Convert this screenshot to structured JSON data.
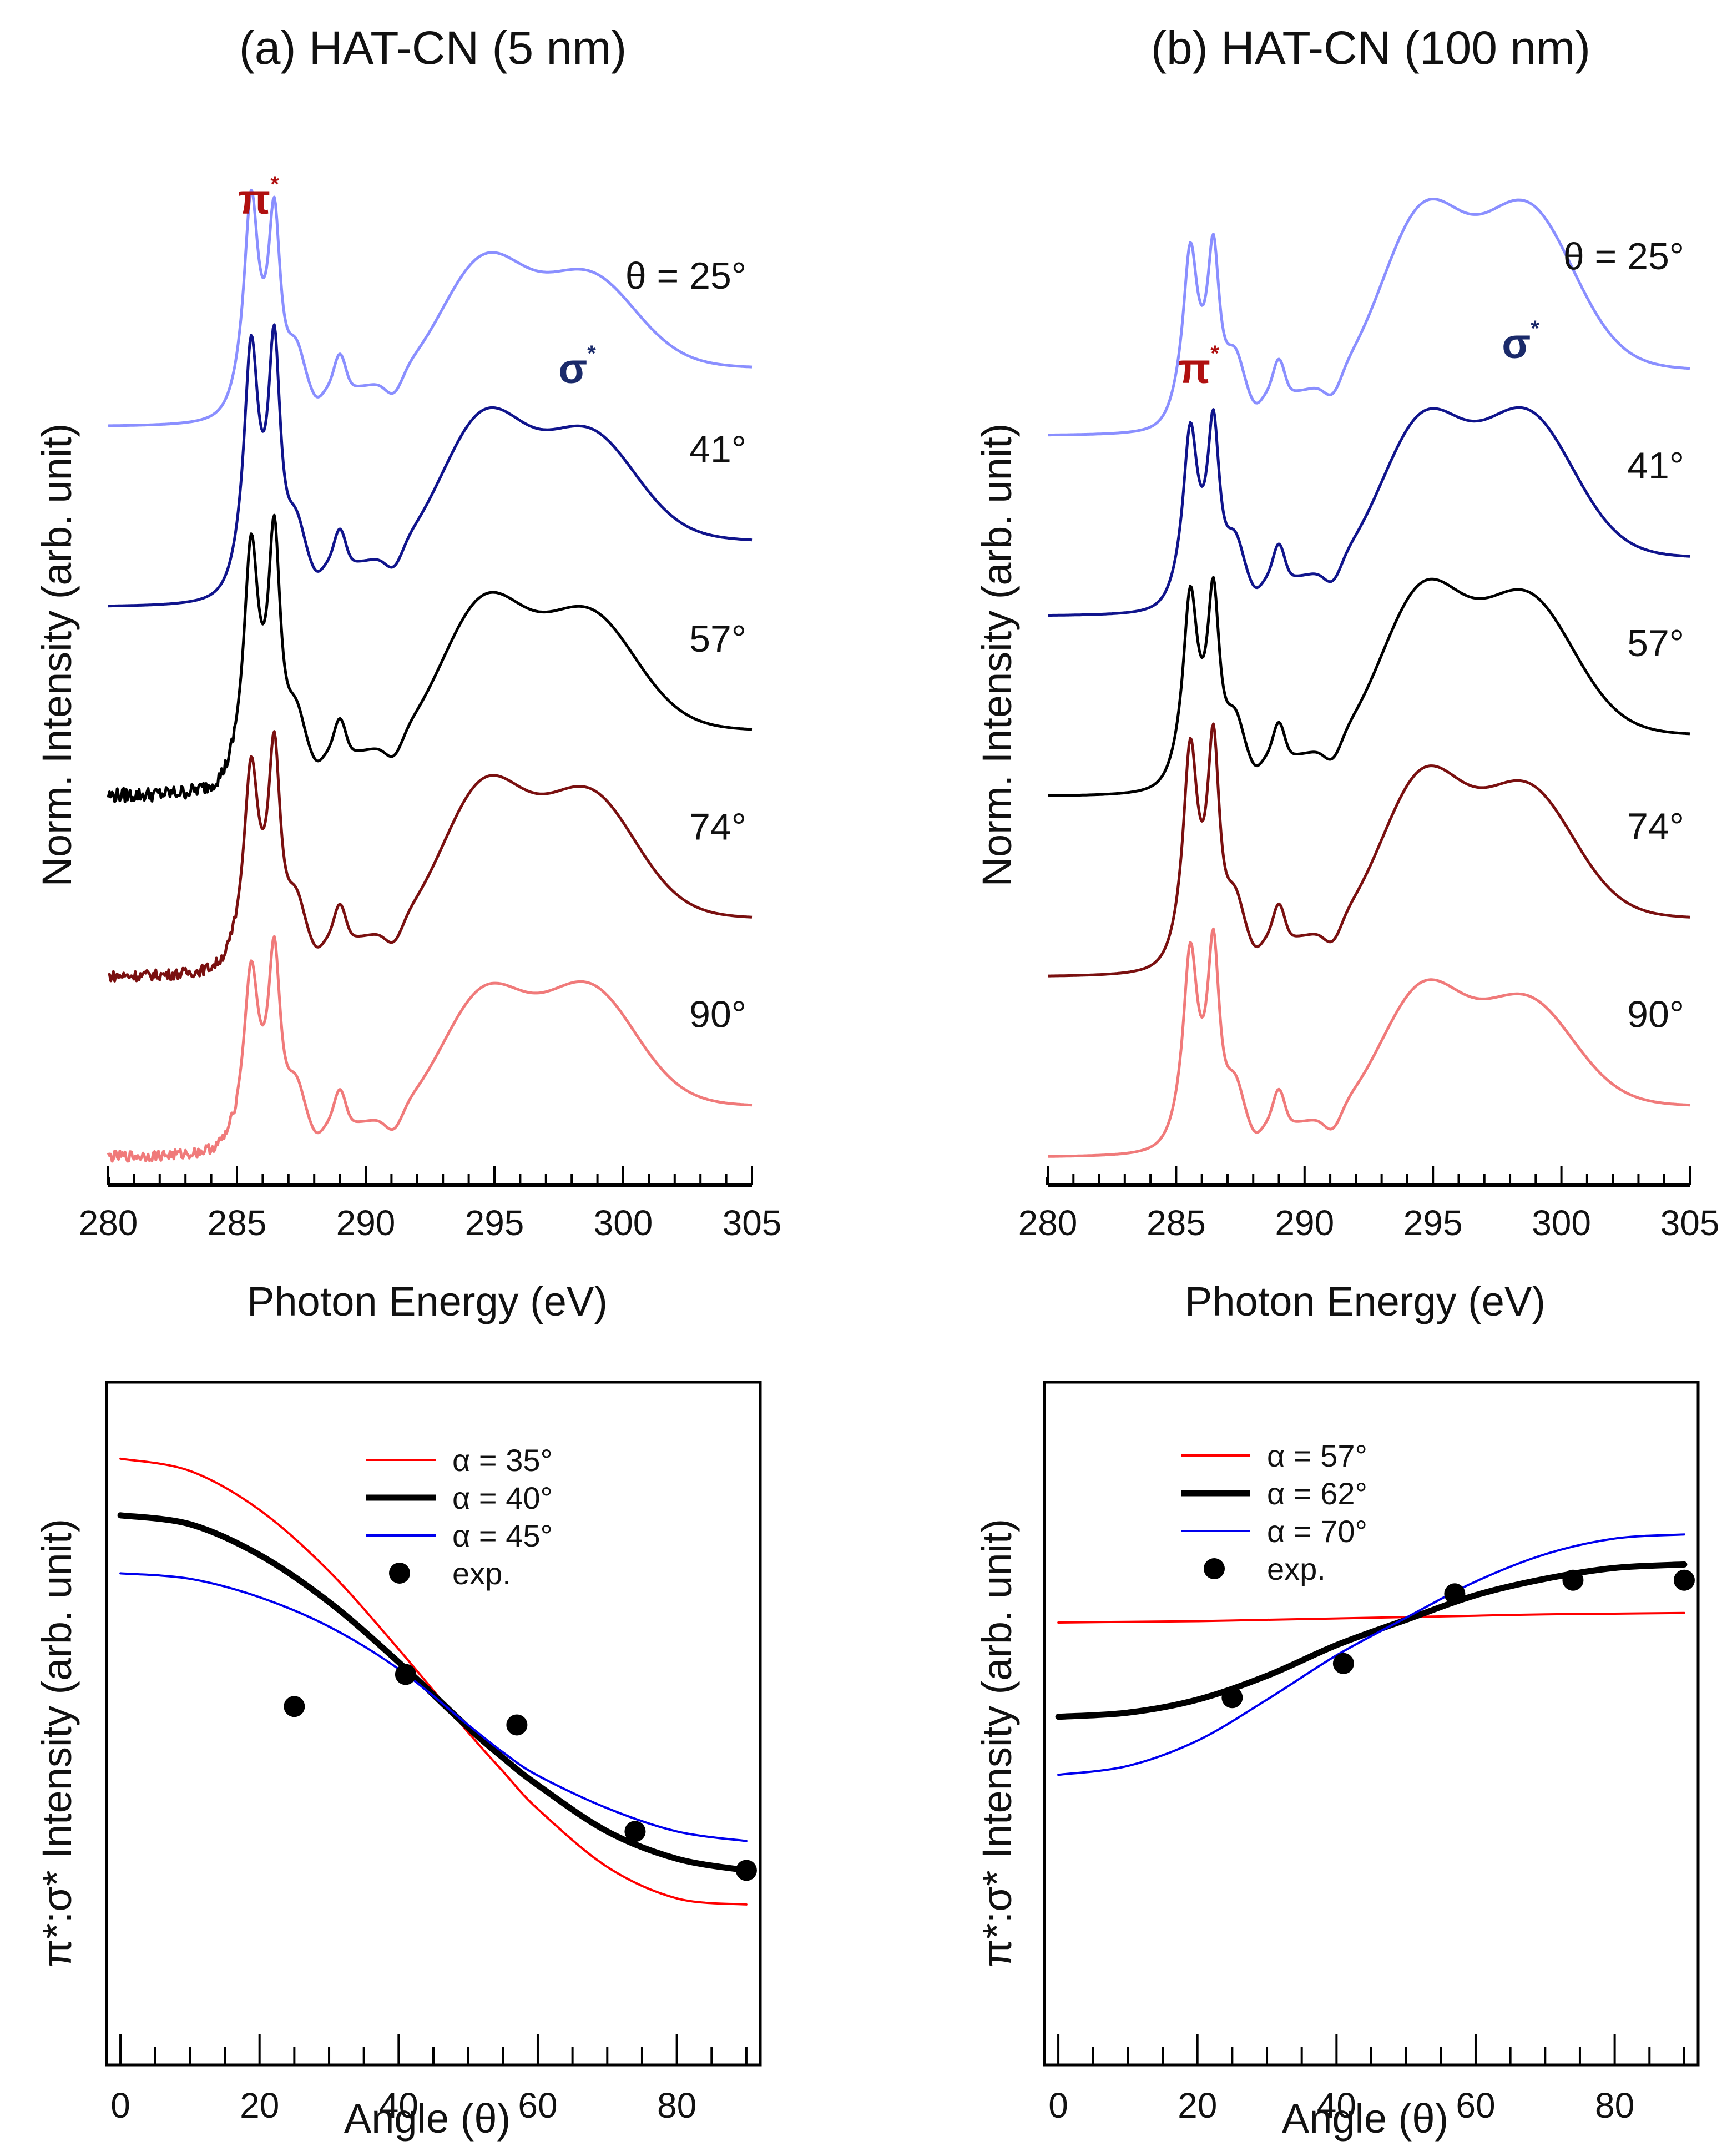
{
  "colors": {
    "theta_25": "#8a8fff",
    "theta_41": "#10148c",
    "theta_57": "#000000",
    "theta_74": "#7a1010",
    "theta_90": "#f07a7a",
    "pi_label": "#b01010",
    "sigma_label": "#1a2a6a",
    "alpha_low": "#ff0000",
    "alpha_mid": "#000000",
    "alpha_high": "#0000ee",
    "exp": "#000000"
  },
  "chart_data": [
    {
      "type": "line",
      "panel": "a-spectra",
      "title": "(a) HAT-CN (5 nm)",
      "xlabel": "Photon Energy (eV)",
      "ylabel": "Norm. Intensity (arb. unit)",
      "xlim": [
        280,
        305
      ],
      "xticks": [
        "280",
        "285",
        "290",
        "295",
        "300",
        "305"
      ],
      "peak_labels": {
        "pi": "π",
        "pi_sup": "*",
        "sigma": "σ",
        "sigma_sup": "*"
      },
      "theta_prefix": "θ  = ",
      "series": [
        {
          "name": "25°",
          "label": "25°",
          "offset": 4.05,
          "noise": 0.0,
          "base": 0.0,
          "pi1": 1.05,
          "pi2": 0.95,
          "s1": 0.47,
          "s2": 0.47,
          "tail": 0.4,
          "color_key": "theta_25"
        },
        {
          "name": "41°",
          "label": "41°",
          "offset": 3.05,
          "noise": 0.0,
          "base": 0.02,
          "pi1": 1.2,
          "pi2": 1.2,
          "s1": 0.55,
          "s2": 0.55,
          "tail": 0.45,
          "color_key": "theta_41"
        },
        {
          "name": "57°",
          "label": "57°",
          "offset": 2.0,
          "noise": 0.04,
          "base": 0.03,
          "pi1": 1.15,
          "pi2": 1.2,
          "s1": 0.57,
          "s2": 0.6,
          "tail": 0.45,
          "color_key": "theta_57"
        },
        {
          "name": "74°",
          "label": "74°",
          "offset": 1.0,
          "noise": 0.03,
          "base": 0.01,
          "pi1": 0.95,
          "pi2": 1.05,
          "s1": 0.6,
          "s2": 0.65,
          "tail": 0.4,
          "color_key": "theta_74"
        },
        {
          "name": "90°",
          "label": "90°",
          "offset": 0.0,
          "noise": 0.03,
          "base": 0.02,
          "pi1": 0.85,
          "pi2": 0.95,
          "s1": 0.5,
          "s2": 0.62,
          "tail": 0.35,
          "color_key": "theta_90"
        }
      ]
    },
    {
      "type": "line",
      "panel": "b-spectra",
      "title": "(b) HAT-CN (100 nm)",
      "xlabel": "Photon Energy (eV)",
      "ylabel": "Norm. Intensity (arb. unit)",
      "xlim": [
        280,
        305
      ],
      "xticks": [
        "280",
        "285",
        "290",
        "295",
        "300",
        "305"
      ],
      "peak_labels": {
        "pi": "π",
        "pi_sup": "*",
        "sigma": "σ",
        "sigma_sup": "*"
      },
      "theta_prefix": "θ  = ",
      "series": [
        {
          "name": "25°",
          "label": "25°",
          "offset": 4.0,
          "noise": 0.0,
          "base": 0.0,
          "pi1": 0.8,
          "pi2": 0.8,
          "s1": 0.72,
          "s2": 0.85,
          "tail": 0.45,
          "color_key": "theta_25"
        },
        {
          "name": "41°",
          "label": "41°",
          "offset": 3.0,
          "noise": 0.0,
          "base": 0.0,
          "pi1": 0.82,
          "pi2": 0.85,
          "s1": 0.62,
          "s2": 0.75,
          "tail": 0.4,
          "color_key": "theta_41"
        },
        {
          "name": "57°",
          "label": "57°",
          "offset": 2.0,
          "noise": 0.0,
          "base": 0.0,
          "pi1": 0.9,
          "pi2": 0.9,
          "s1": 0.66,
          "s2": 0.72,
          "tail": 0.42,
          "color_key": "theta_57"
        },
        {
          "name": "74°",
          "label": "74°",
          "offset": 1.0,
          "noise": 0.0,
          "base": 0.0,
          "pi1": 1.05,
          "pi2": 1.08,
          "s1": 0.65,
          "s2": 0.68,
          "tail": 0.4,
          "color_key": "theta_74"
        },
        {
          "name": "90°",
          "label": "90°",
          "offset": 0.0,
          "noise": 0.0,
          "base": 0.0,
          "pi1": 0.95,
          "pi2": 0.98,
          "s1": 0.53,
          "s2": 0.55,
          "tail": 0.35,
          "color_key": "theta_90"
        }
      ]
    },
    {
      "type": "line",
      "panel": "a-angle",
      "xlabel": "Angle (θ)",
      "ylabel": "π*:σ* Intensity (arb. unit)",
      "xlim": [
        -2,
        92
      ],
      "ylim": [
        0,
        10
      ],
      "xticks": [
        "0",
        "20",
        "40",
        "60",
        "80"
      ],
      "series": [
        {
          "name": "α = 35°",
          "x": [
            0,
            10,
            20,
            30,
            40,
            50,
            55,
            60,
            70,
            80,
            90
          ],
          "y": [
            8.88,
            8.7,
            8.13,
            7.23,
            6.09,
            4.87,
            4.3,
            3.75,
            2.9,
            2.44,
            2.35
          ],
          "color_key": "alpha_low",
          "width": 4
        },
        {
          "name": "α = 40°",
          "x": [
            0,
            10,
            20,
            30,
            40,
            50,
            55,
            60,
            70,
            80,
            90
          ],
          "y": [
            8.05,
            7.92,
            7.47,
            6.78,
            5.9,
            4.94,
            4.5,
            4.1,
            3.42,
            3.02,
            2.85
          ],
          "color_key": "alpha_mid",
          "width": 11
        },
        {
          "name": "α = 45°",
          "x": [
            0,
            10,
            20,
            30,
            40,
            50,
            55,
            60,
            70,
            80,
            90
          ],
          "y": [
            7.2,
            7.12,
            6.85,
            6.42,
            5.8,
            4.98,
            4.58,
            4.24,
            3.76,
            3.42,
            3.28
          ],
          "color_key": "alpha_high",
          "width": 4
        },
        {
          "name": "exp.",
          "type": "scatter",
          "x": [
            25,
            41,
            57,
            74,
            90
          ],
          "y": [
            5.25,
            5.72,
            4.98,
            3.42,
            2.85
          ],
          "color_key": "exp"
        }
      ]
    },
    {
      "type": "line",
      "panel": "b-angle",
      "xlabel": "Angle (θ)",
      "ylabel": "π*:σ* Intensity (arb. unit)",
      "xlim": [
        -2,
        92
      ],
      "ylim": [
        0,
        10
      ],
      "xticks": [
        "0",
        "20",
        "40",
        "60",
        "80"
      ],
      "series": [
        {
          "name": "α = 57°",
          "x": [
            0,
            10,
            20,
            30,
            40,
            50,
            60,
            70,
            80,
            90
          ],
          "y": [
            6.48,
            6.49,
            6.5,
            6.52,
            6.54,
            6.56,
            6.58,
            6.6,
            6.61,
            6.62
          ],
          "color_key": "alpha_low",
          "width": 4
        },
        {
          "name": "α = 62°",
          "x": [
            0,
            10,
            20,
            30,
            40,
            50,
            60,
            70,
            80,
            90
          ],
          "y": [
            5.1,
            5.16,
            5.35,
            5.7,
            6.15,
            6.52,
            6.88,
            7.12,
            7.28,
            7.33
          ],
          "color_key": "alpha_mid",
          "width": 11
        },
        {
          "name": "α = 70°",
          "x": [
            0,
            10,
            20,
            30,
            40,
            50,
            60,
            70,
            80,
            90
          ],
          "y": [
            4.25,
            4.38,
            4.75,
            5.35,
            6.0,
            6.55,
            7.08,
            7.48,
            7.71,
            7.77
          ],
          "color_key": "alpha_high",
          "width": 4
        },
        {
          "name": "exp.",
          "type": "scatter",
          "x": [
            25,
            41,
            57,
            74,
            90
          ],
          "y": [
            5.38,
            5.88,
            6.9,
            7.1,
            7.1
          ],
          "color_key": "exp"
        }
      ]
    }
  ]
}
